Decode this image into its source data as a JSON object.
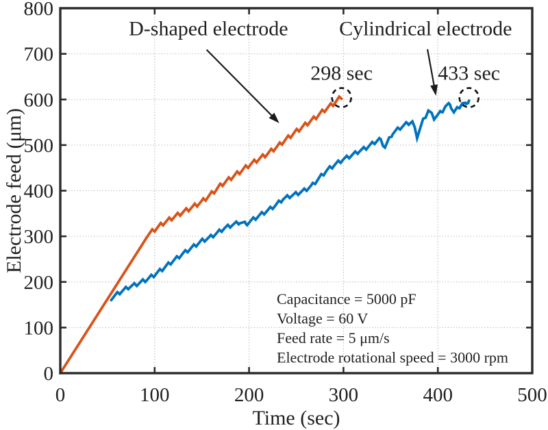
{
  "page": {
    "background": "#ffffff"
  },
  "chart_data": {
    "type": "line",
    "title": "",
    "xlabel": "Time (sec)",
    "ylabel": "Electrode feed (μm)",
    "xlim": [
      0,
      500
    ],
    "ylim": [
      0,
      800
    ],
    "x_ticks": [
      0,
      100,
      200,
      300,
      400,
      500
    ],
    "y_ticks": [
      0,
      100,
      200,
      300,
      400,
      500,
      600,
      700,
      800
    ],
    "grid": {
      "on": true,
      "style": "dotted",
      "color": "#b0b0b0"
    },
    "axis_color": "#2a2a2a",
    "legend_position": "none",
    "series": [
      {
        "name": "D-shaped electrode",
        "color": "#D95319",
        "end_time_label": "298 sec",
        "end_time_sec": 298,
        "end_feed_um": 605,
        "zigzag": {
          "start_sec": 91,
          "amplitude_um": 9,
          "period_sec": 9
        },
        "points": [
          [
            0,
            0
          ],
          [
            91,
            300
          ],
          [
            100,
            315
          ],
          [
            110,
            330
          ],
          [
            120,
            342
          ],
          [
            130,
            353
          ],
          [
            140,
            364
          ],
          [
            150,
            376
          ],
          [
            160,
            393
          ],
          [
            170,
            412
          ],
          [
            180,
            427
          ],
          [
            190,
            441
          ],
          [
            200,
            456
          ],
          [
            210,
            469
          ],
          [
            220,
            482
          ],
          [
            230,
            497
          ],
          [
            240,
            514
          ],
          [
            250,
            530
          ],
          [
            260,
            545
          ],
          [
            270,
            560
          ],
          [
            280,
            577
          ],
          [
            290,
            592
          ],
          [
            298,
            606
          ]
        ]
      },
      {
        "name": "Cylindrical electrode",
        "color": "#0072BD",
        "end_time_label": "433 sec",
        "end_time_sec": 433,
        "end_feed_um": 600,
        "zigzag": {
          "start_sec": 54,
          "amplitude_um": 8,
          "period_sec": 9
        },
        "points": [
          [
            54,
            164
          ],
          [
            62,
            176
          ],
          [
            72,
            188
          ],
          [
            82,
            196
          ],
          [
            92,
            206
          ],
          [
            100,
            216
          ],
          [
            108,
            228
          ],
          [
            118,
            244
          ],
          [
            130,
            262
          ],
          [
            140,
            276
          ],
          [
            150,
            290
          ],
          [
            158,
            297
          ],
          [
            166,
            307
          ],
          [
            174,
            318
          ],
          [
            182,
            325
          ],
          [
            190,
            331
          ],
          [
            197,
            327
          ],
          [
            205,
            338
          ],
          [
            212,
            347
          ],
          [
            220,
            357
          ],
          [
            228,
            368
          ],
          [
            236,
            382
          ],
          [
            243,
            388
          ],
          [
            250,
            393
          ],
          [
            258,
            400
          ],
          [
            266,
            410
          ],
          [
            274,
            427
          ],
          [
            282,
            444
          ],
          [
            290,
            456
          ],
          [
            300,
            469
          ],
          [
            308,
            477
          ],
          [
            316,
            486
          ],
          [
            324,
            494
          ],
          [
            332,
            505
          ],
          [
            338,
            513
          ],
          [
            344,
            496
          ],
          [
            352,
            526
          ],
          [
            360,
            538
          ],
          [
            368,
            548
          ],
          [
            373,
            551
          ],
          [
            378,
            519
          ],
          [
            384,
            552
          ],
          [
            390,
            576
          ],
          [
            396,
            560
          ],
          [
            400,
            566
          ],
          [
            404,
            573
          ],
          [
            408,
            585
          ],
          [
            413,
            589
          ],
          [
            417,
            572
          ],
          [
            421,
            580
          ],
          [
            426,
            592
          ],
          [
            430,
            588
          ],
          [
            433,
            600
          ]
        ]
      }
    ],
    "annotations": {
      "d_shaped_label": {
        "text": "D-shaped electrode",
        "t": 157,
        "um": 756,
        "arrow_from": [
          155,
          709
        ],
        "arrow_to": [
          232,
          548
        ]
      },
      "cylindrical_label": {
        "text": "Cylindrical electrode",
        "t": 387,
        "um": 756,
        "arrow_from": [
          389,
          710
        ],
        "arrow_to": [
          398,
          608
        ]
      },
      "d_end_time": {
        "text": "298 sec",
        "t": 298,
        "um": 658
      },
      "c_end_time": {
        "text": "433 sec",
        "t": 433,
        "um": 658
      },
      "d_end_circle": {
        "t": 298,
        "um": 604,
        "radius_px": 14
      },
      "c_end_circle": {
        "t": 433,
        "um": 604,
        "radius_px": 14
      }
    },
    "params_text": {
      "lines": [
        "Capacitance = 5000 pF",
        "Voltage = 60 V",
        "Feed rate = 5 μm/s",
        "Electrode rotational speed = 3000 rpm"
      ]
    }
  }
}
